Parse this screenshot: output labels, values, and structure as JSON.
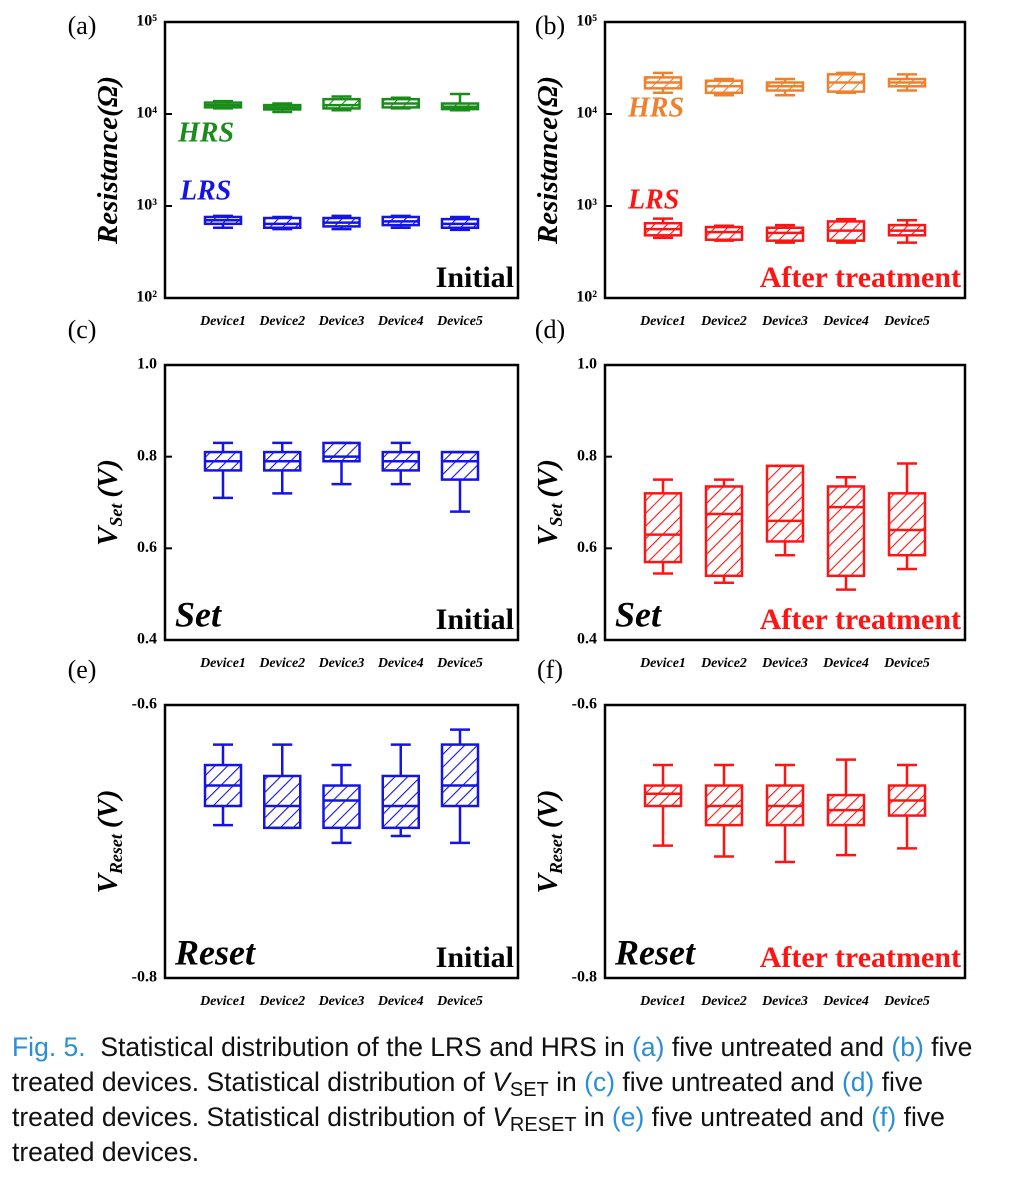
{
  "chart_data": [
    {
      "type": "box",
      "panel_label": "(a)",
      "ylabel": {
        "text": "Resistance(Ω)"
      },
      "yscale": "log",
      "ylim": [
        100,
        100000
      ],
      "yticks": [
        {
          "value": 100,
          "label": "10²"
        },
        {
          "value": 1000,
          "label": "10³"
        },
        {
          "value": 10000,
          "label": "10⁴"
        },
        {
          "value": 100000,
          "label": "10⁵"
        }
      ],
      "categories": [
        "Device1",
        "Device2",
        "Device3",
        "Device4",
        "Device5"
      ],
      "series": [
        {
          "name": "HRS",
          "color": "#1a8c1a",
          "min": [
            11500,
            10500,
            11000,
            11500,
            11000
          ],
          "q1": [
            11800,
            11200,
            11500,
            11800,
            11300
          ],
          "median": [
            12500,
            11800,
            12500,
            13000,
            12000
          ],
          "q3": [
            13300,
            12500,
            14500,
            14500,
            13000
          ],
          "max": [
            13800,
            13000,
            15500,
            15000,
            16500
          ]
        },
        {
          "name": "LRS",
          "color": "#1414e6",
          "min": [
            580,
            560,
            560,
            580,
            550
          ],
          "q1": [
            640,
            580,
            600,
            620,
            580
          ],
          "median": [
            700,
            640,
            660,
            680,
            640
          ],
          "q3": [
            760,
            740,
            740,
            760,
            720
          ],
          "max": [
            780,
            760,
            780,
            780,
            760
          ]
        }
      ],
      "annotation": "Initial",
      "annotation_color": "#000000"
    },
    {
      "type": "box",
      "panel_label": "(b)",
      "ylabel": {
        "text": "Resistance(Ω)"
      },
      "yscale": "log",
      "ylim": [
        100,
        100000
      ],
      "yticks": [
        {
          "value": 100,
          "label": "10²"
        },
        {
          "value": 1000,
          "label": "10³"
        },
        {
          "value": 10000,
          "label": "10⁴"
        },
        {
          "value": 100000,
          "label": "10⁵"
        }
      ],
      "categories": [
        "Device1",
        "Device2",
        "Device3",
        "Device4",
        "Device5"
      ],
      "series": [
        {
          "name": "HRS",
          "color": "#f0802e",
          "min": [
            17000,
            16000,
            16000,
            17000,
            18000
          ],
          "q1": [
            19000,
            17000,
            18000,
            17500,
            20000
          ],
          "median": [
            22000,
            20000,
            20000,
            22000,
            22000
          ],
          "q3": [
            25000,
            23000,
            22000,
            27000,
            24000
          ],
          "max": [
            28000,
            24000,
            24000,
            28000,
            27000
          ]
        },
        {
          "name": "LRS",
          "color": "#ff1414",
          "min": [
            450,
            420,
            400,
            400,
            400
          ],
          "q1": [
            480,
            430,
            420,
            420,
            480
          ],
          "median": [
            560,
            520,
            510,
            540,
            540
          ],
          "q3": [
            650,
            590,
            580,
            680,
            620
          ],
          "max": [
            730,
            610,
            620,
            720,
            700
          ]
        }
      ],
      "annotation": "After treatment",
      "annotation_color": "#ff1414"
    },
    {
      "type": "box",
      "panel_label": "(c)",
      "ylabel": {
        "text": "V",
        "sub": "Set",
        "unit": "(V)"
      },
      "ylim": [
        0.4,
        1
      ],
      "yticks": [
        0.4,
        0.6,
        0.8,
        {
          "value": 1,
          "label": "1.0"
        }
      ],
      "categories": [
        "Device1",
        "Device2",
        "Device3",
        "Device4",
        "Device5"
      ],
      "series": [
        {
          "color": "#1414e6",
          "min": [
            0.71,
            0.72,
            0.74,
            0.74,
            0.68
          ],
          "q1": [
            0.77,
            0.77,
            0.79,
            0.77,
            0.75
          ],
          "median": [
            0.79,
            0.79,
            0.8,
            0.79,
            0.79
          ],
          "q3": [
            0.81,
            0.81,
            0.83,
            0.81,
            0.81
          ],
          "max": [
            0.83,
            0.83,
            0.83,
            0.83,
            0.81
          ]
        }
      ],
      "mode_label": "Set",
      "annotation": "Initial",
      "annotation_color": "#000000"
    },
    {
      "type": "box",
      "panel_label": "(d)",
      "ylabel": {
        "text": "V",
        "sub": "Set",
        "unit": "(V)"
      },
      "ylim": [
        0.4,
        1
      ],
      "yticks": [
        0.4,
        0.6,
        0.8,
        {
          "value": 1,
          "label": "1.0"
        }
      ],
      "categories": [
        "Device1",
        "Device2",
        "Device3",
        "Device4",
        "Device5"
      ],
      "series": [
        {
          "color": "#ff1414",
          "min": [
            0.545,
            0.525,
            0.585,
            0.51,
            0.555
          ],
          "q1": [
            0.57,
            0.54,
            0.615,
            0.54,
            0.585
          ],
          "median": [
            0.63,
            0.675,
            0.66,
            0.69,
            0.64
          ],
          "q3": [
            0.72,
            0.735,
            0.78,
            0.735,
            0.72
          ],
          "max": [
            0.75,
            0.75,
            0.78,
            0.755,
            0.785
          ]
        }
      ],
      "mode_label": "Set",
      "annotation": "After treatment",
      "annotation_color": "#ff1414"
    },
    {
      "type": "box",
      "panel_label": "(e)",
      "ylabel": {
        "text": "V",
        "sub": "Reset",
        "unit": "(V)"
      },
      "ylim": [
        -0.8,
        -0.6
      ],
      "yticks": [
        -0.8,
        -0.6
      ],
      "categories": [
        "Device1",
        "Device2",
        "Device3",
        "Device4",
        "Device5"
      ],
      "series": [
        {
          "color": "#1414e6",
          "min": [
            -0.688,
            -0.69,
            -0.701,
            -0.696,
            -0.701
          ],
          "q1": [
            -0.674,
            -0.69,
            -0.69,
            -0.69,
            -0.674
          ],
          "median": [
            -0.659,
            -0.674,
            -0.67,
            -0.674,
            -0.659
          ],
          "q3": [
            -0.644,
            -0.652,
            -0.659,
            -0.652,
            -0.629
          ],
          "max": [
            -0.629,
            -0.629,
            -0.644,
            -0.629,
            -0.618
          ]
        }
      ],
      "mode_label": "Reset",
      "annotation": "Initial",
      "annotation_color": "#000000"
    },
    {
      "type": "box",
      "panel_label": "(f)",
      "ylabel": {
        "text": "V",
        "sub": "Reset",
        "unit": "(V)"
      },
      "ylim": [
        -0.8,
        -0.6
      ],
      "yticks": [
        -0.8,
        -0.6
      ],
      "categories": [
        "Device1",
        "Device2",
        "Device3",
        "Device4",
        "Device5"
      ],
      "series": [
        {
          "color": "#ff1414",
          "min": [
            -0.703,
            -0.711,
            -0.715,
            -0.71,
            -0.705
          ],
          "q1": [
            -0.674,
            -0.688,
            -0.688,
            -0.688,
            -0.681
          ],
          "median": [
            -0.665,
            -0.674,
            -0.674,
            -0.677,
            -0.67
          ],
          "q3": [
            -0.659,
            -0.659,
            -0.659,
            -0.666,
            -0.659
          ],
          "max": [
            -0.644,
            -0.644,
            -0.644,
            -0.64,
            -0.644
          ]
        }
      ],
      "mode_label": "Reset",
      "annotation": "After treatment",
      "annotation_color": "#ff1414"
    }
  ],
  "caption": {
    "runs": [
      {
        "text": "Fig. 5.",
        "color": "#2b8fd6"
      },
      {
        "text": "  Statistical distribution of the LRS and HRS in "
      },
      {
        "text": "(a)",
        "color": "#2b8fd6"
      },
      {
        "text": " five untreated and "
      },
      {
        "text": "(b)",
        "color": "#2b8fd6"
      },
      {
        "text": " five treated devices. Statistical distribution of "
      },
      {
        "text": "V",
        "italic": true
      },
      {
        "text": "SET",
        "sub": true
      },
      {
        "text": " in "
      },
      {
        "text": "(c)",
        "color": "#2b8fd6"
      },
      {
        "text": " five untreated and "
      },
      {
        "text": "(d)",
        "color": "#2b8fd6"
      },
      {
        "text": " five treated devices. Statistical distribution of "
      },
      {
        "text": "V",
        "italic": true
      },
      {
        "text": "RESET",
        "sub": true
      },
      {
        "text": " in "
      },
      {
        "text": "(e)",
        "color": "#2b8fd6"
      },
      {
        "text": " five untreated and "
      },
      {
        "text": "(f)",
        "color": "#2b8fd6"
      },
      {
        "text": " five treated devices."
      }
    ]
  }
}
